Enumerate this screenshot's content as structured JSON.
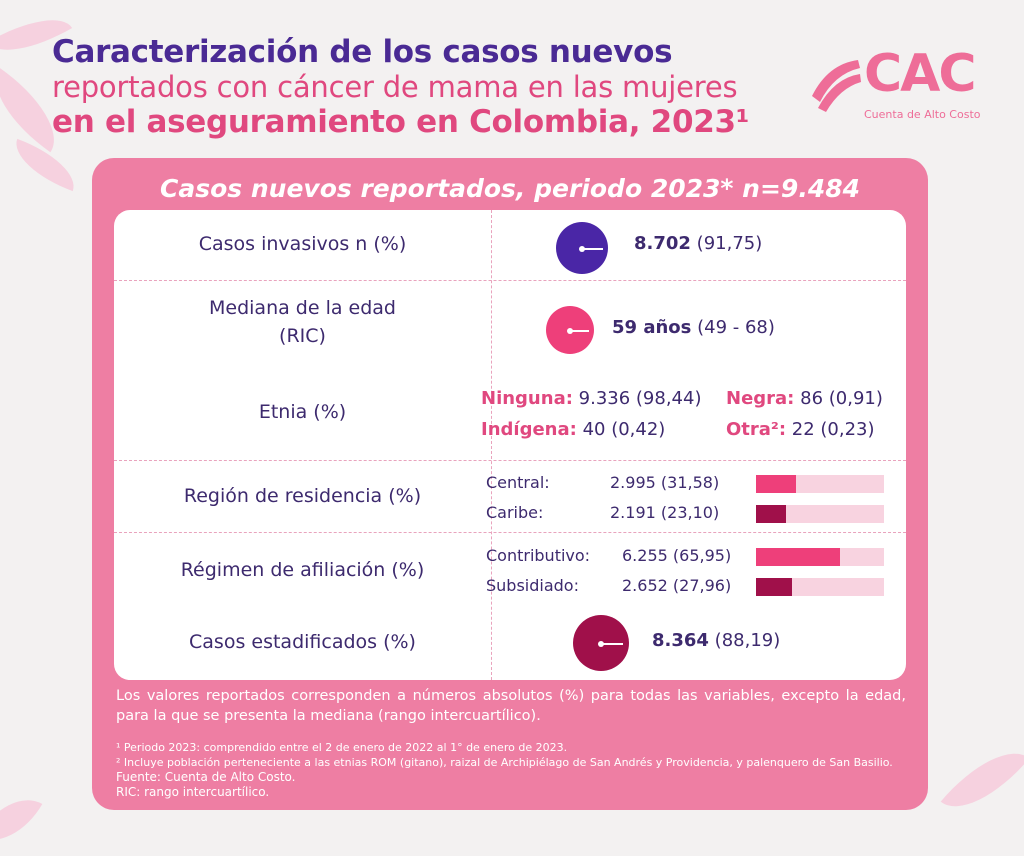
{
  "title": {
    "line1": "Caracterización de los casos nuevos",
    "line2": "reportados con cáncer de mama en las mujeres",
    "line3": "en el aseguramiento en Colombia, 2023¹"
  },
  "logo": {
    "text": "CAC",
    "subtitle": "Cuenta de Alto Costo"
  },
  "card": {
    "header": "Casos nuevos reportados, periodo 2023* n=9.484"
  },
  "rows": {
    "invasivos": {
      "label": "Casos invasivos n (%)",
      "value": "8.702",
      "pct": "(91,75)",
      "color": "#4a26a6"
    },
    "edad": {
      "label_line1": "Mediana de la edad",
      "label_line2": "(RIC)",
      "value": "59 años",
      "range": "(49 - 68)",
      "color": "#ee3f7a"
    },
    "etnia": {
      "label": "Etnia (%)",
      "items": [
        {
          "name": "Ninguna:",
          "value": "9.336 (98,44)"
        },
        {
          "name": "Negra:",
          "value": "86 (0,91)"
        },
        {
          "name": "Indígena:",
          "value": "40 (0,42)"
        },
        {
          "name": "Otra²:",
          "value": "22 (0,23)"
        }
      ]
    },
    "region": {
      "label": "Región de residencia (%)",
      "items": [
        {
          "name": "Central:",
          "value": "2.995 (31,58)",
          "pct": 31.58,
          "color": "#ee3f7a"
        },
        {
          "name": "Caribe:",
          "value": "2.191 (23,10)",
          "pct": 23.1,
          "color": "#a0104a"
        }
      ]
    },
    "regimen": {
      "label": "Régimen de afiliación (%)",
      "items": [
        {
          "name": "Contributivo:",
          "value": "6.255 (65,95)",
          "pct": 65.95,
          "color": "#ee3f7a"
        },
        {
          "name": "Subsidiado:",
          "value": "2.652 (27,96)",
          "pct": 27.96,
          "color": "#a0104a"
        }
      ]
    },
    "estadificados": {
      "label": "Casos estadificados (%)",
      "value": "8.364",
      "pct": "(88,19)",
      "color": "#a0104a"
    }
  },
  "note": "Los valores reportados corresponden a números absolutos (%) para todas las variables, excepto la edad, para la que se presenta la mediana (rango intercuartílico).",
  "footnotes": [
    "¹ Periodo 2023: comprendido entre el 2 de enero de 2022 al 1° de enero de 2023.",
    "² Incluye población perteneciente a las etnias ROM (gitano), raizal de Archipiélago de San Andrés y Providencia, y palenquero de San Basilio.",
    "Fuente: Cuenta de Alto Costo.",
    "RIC: rango intercuartílico."
  ]
}
